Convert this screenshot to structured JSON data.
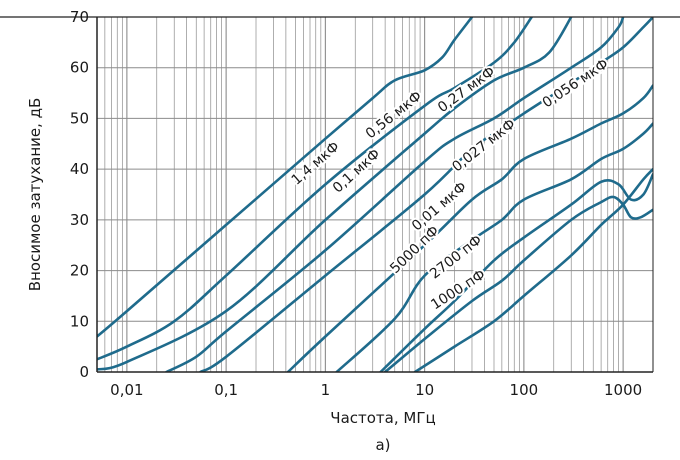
{
  "chart_data": {
    "type": "line",
    "title": "",
    "panel_label": "а)",
    "xlabel": "Частота, МГц",
    "ylabel": "Вносимое затухание, дБ",
    "x_scale": "log",
    "xlim": [
      0.005,
      2000
    ],
    "ylim": [
      0,
      70
    ],
    "grid": true,
    "x_ticks": [
      0.01,
      0.1,
      1,
      10,
      100,
      1000
    ],
    "x_tick_labels": [
      "0,01",
      "0,1",
      "1",
      "10",
      "100",
      "1000"
    ],
    "y_ticks": [
      0,
      10,
      20,
      30,
      40,
      50,
      60,
      70
    ],
    "y_tick_labels": [
      "0",
      "10",
      "20",
      "30",
      "40",
      "50",
      "60",
      "70"
    ],
    "colors": {
      "curve": "#1f6b8c",
      "grid": "#8c8c8c",
      "axis": "#222222"
    },
    "series": [
      {
        "name": "1,4 мкФ",
        "points": [
          [
            0.005,
            7
          ],
          [
            0.01,
            12
          ],
          [
            0.1,
            29
          ],
          [
            1,
            46
          ],
          [
            3,
            54
          ],
          [
            5,
            57.5
          ],
          [
            10,
            59.5
          ],
          [
            15,
            62
          ],
          [
            20,
            65.5
          ],
          [
            30,
            70
          ]
        ]
      },
      {
        "name": "0,56 мкФ",
        "points": [
          [
            0.005,
            2.5
          ],
          [
            0.01,
            5
          ],
          [
            0.03,
            10
          ],
          [
            0.1,
            19
          ],
          [
            1,
            37
          ],
          [
            10,
            52.5
          ],
          [
            20,
            56
          ],
          [
            50,
            61
          ],
          [
            80,
            65
          ],
          [
            120,
            70
          ]
        ]
      },
      {
        "name": "0,27 мкФ",
        "points": [
          [
            0.005,
            0.5
          ],
          [
            0.01,
            2
          ],
          [
            0.1,
            12
          ],
          [
            1,
            30
          ],
          [
            10,
            47
          ],
          [
            20,
            52
          ],
          [
            50,
            57.5
          ],
          [
            100,
            60
          ],
          [
            180,
            63
          ],
          [
            300,
            70
          ]
        ]
      },
      {
        "name": "0,1 мкФ",
        "points": [
          [
            0.025,
            0
          ],
          [
            0.05,
            3
          ],
          [
            0.1,
            8
          ],
          [
            1,
            24
          ],
          [
            10,
            41.5
          ],
          [
            20,
            46
          ],
          [
            50,
            50
          ],
          [
            100,
            54
          ],
          [
            300,
            60
          ],
          [
            600,
            64
          ],
          [
            900,
            68
          ],
          [
            1000,
            70
          ]
        ]
      },
      {
        "name": "0,056 мкФ",
        "points": [
          [
            0.055,
            0
          ],
          [
            0.1,
            3
          ],
          [
            1,
            19
          ],
          [
            10,
            35
          ],
          [
            30,
            44
          ],
          [
            60,
            48
          ],
          [
            100,
            51
          ],
          [
            300,
            57
          ],
          [
            600,
            61
          ],
          [
            1000,
            64
          ],
          [
            1600,
            68
          ],
          [
            2000,
            70
          ]
        ]
      },
      {
        "name": "0,027 мкФ",
        "points": [
          [
            0.42,
            0
          ],
          [
            1,
            7
          ],
          [
            10,
            25
          ],
          [
            30,
            34
          ],
          [
            60,
            38
          ],
          [
            100,
            42
          ],
          [
            300,
            46
          ],
          [
            600,
            49
          ],
          [
            1000,
            51
          ],
          [
            1600,
            54
          ],
          [
            2000,
            56.5
          ]
        ]
      },
      {
        "name": "0,01 мкФ",
        "points": [
          [
            1.3,
            0
          ],
          [
            5,
            10.5
          ],
          [
            10,
            19
          ],
          [
            30,
            26
          ],
          [
            60,
            30
          ],
          [
            100,
            34
          ],
          [
            300,
            38
          ],
          [
            600,
            42
          ],
          [
            1000,
            44
          ],
          [
            1600,
            47
          ],
          [
            2000,
            49
          ]
        ]
      },
      {
        "name": "5000 пФ",
        "points": [
          [
            3.6,
            0
          ],
          [
            10,
            8.5
          ],
          [
            20,
            14
          ],
          [
            50,
            22
          ],
          [
            100,
            26.5
          ],
          [
            300,
            33
          ],
          [
            600,
            37.5
          ],
          [
            900,
            37
          ],
          [
            1200,
            34
          ],
          [
            1600,
            35
          ],
          [
            2000,
            39
          ]
        ]
      },
      {
        "name": "2700 пФ",
        "points": [
          [
            4,
            0
          ],
          [
            10,
            6.5
          ],
          [
            30,
            14
          ],
          [
            60,
            18
          ],
          [
            100,
            22
          ],
          [
            300,
            30
          ],
          [
            600,
            33.5
          ],
          [
            800,
            34.5
          ],
          [
            1000,
            33
          ],
          [
            1200,
            30.5
          ],
          [
            1500,
            30.5
          ],
          [
            2000,
            32
          ]
        ]
      },
      {
        "name": "1000 пФ",
        "points": [
          [
            8,
            0
          ],
          [
            20,
            5
          ],
          [
            50,
            10
          ],
          [
            100,
            15
          ],
          [
            300,
            23
          ],
          [
            600,
            29
          ],
          [
            1000,
            33
          ],
          [
            1600,
            38
          ],
          [
            2000,
            40
          ]
        ]
      }
    ]
  }
}
